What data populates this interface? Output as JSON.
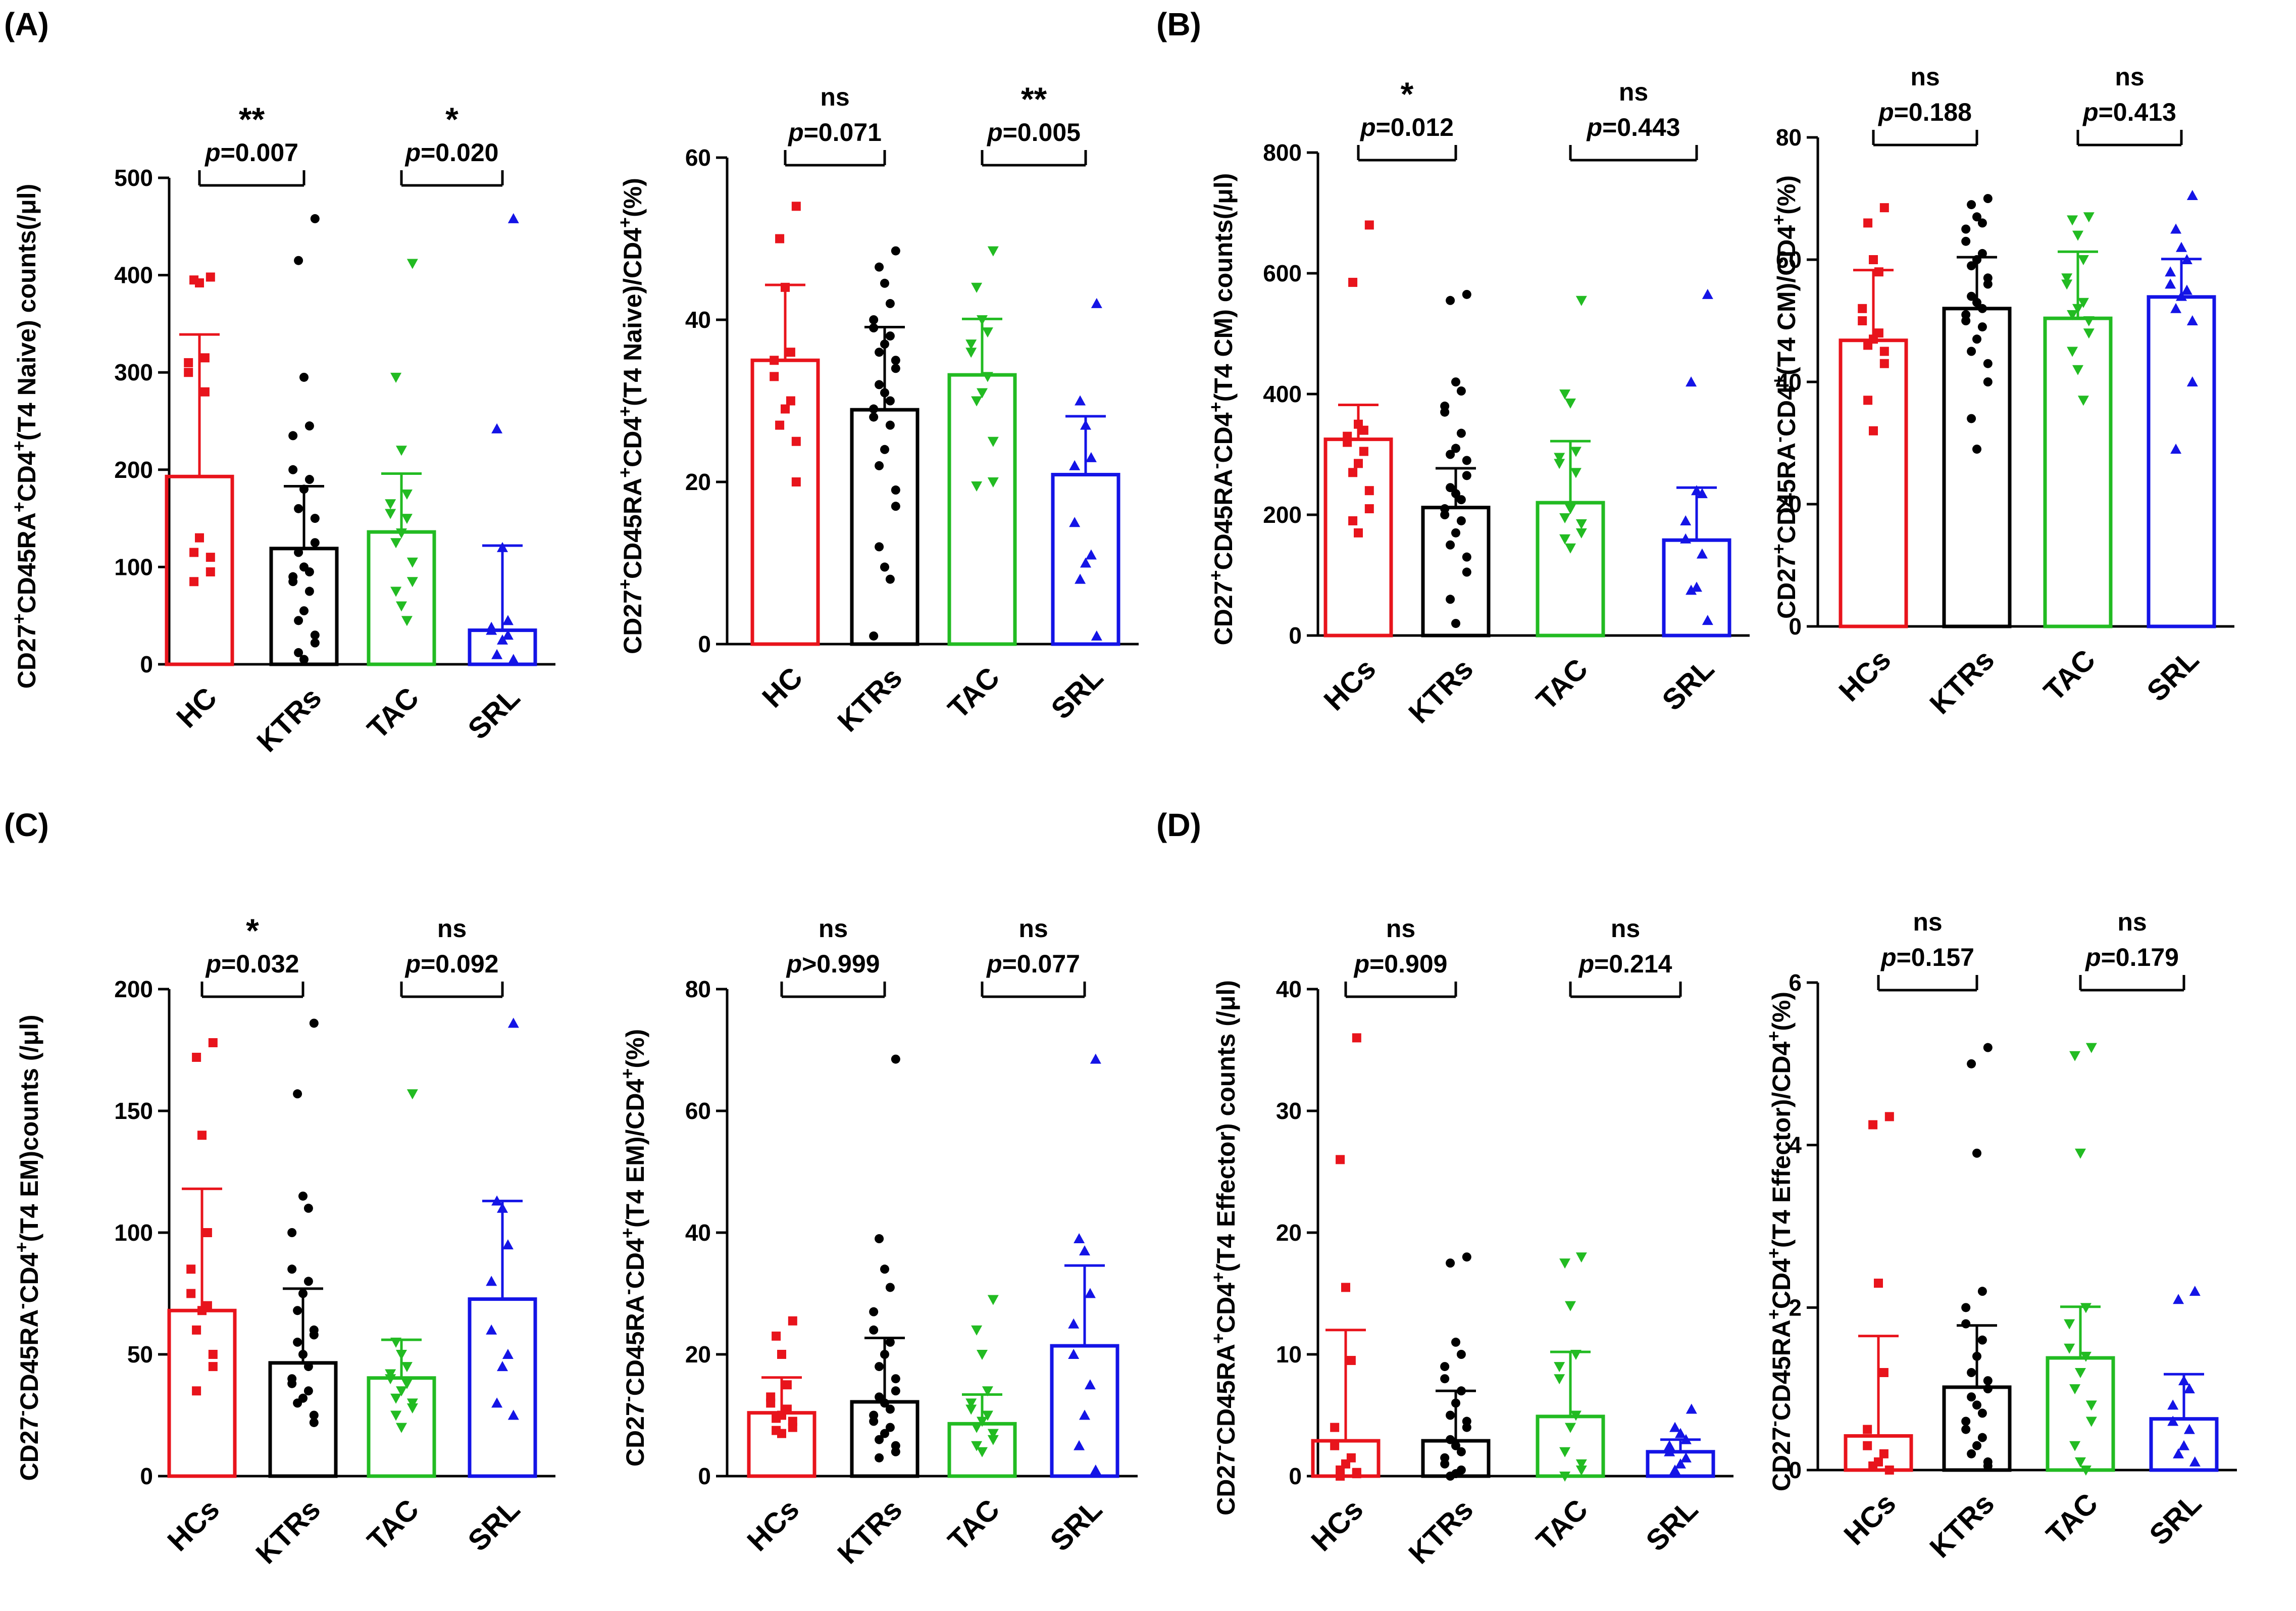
{
  "panel_labels": [
    "(A)",
    "(B)",
    "(C)",
    "(D)"
  ],
  "colors": {
    "HC": "#e8141c",
    "KTRs": "#000000",
    "TAC": "#22bb22",
    "SRL": "#1414e6"
  },
  "chart_data": [
    {
      "type": "bar",
      "panel": "(A)",
      "ylabel_parts": [
        [
          "CD27",
          "+",
          "sup"
        ],
        [
          "CD45RA",
          "+",
          "sup"
        ],
        [
          "CD4",
          "+",
          "sup"
        ],
        [
          "(T4 Naive) counts(/μl)",
          "",
          "sup"
        ]
      ],
      "ylim": [
        0,
        500
      ],
      "yticks": [
        0,
        100,
        200,
        300,
        400,
        500
      ],
      "categories": [
        "HC",
        "KTRs",
        "TAC",
        "SRL"
      ],
      "means": [
        193,
        119,
        136,
        35
      ],
      "err_upper": [
        339,
        183,
        196,
        122
      ],
      "points": [
        [
          398,
          395,
          392,
          315,
          310,
          300,
          280,
          130,
          115,
          110,
          95,
          85
        ],
        [
          458,
          415,
          295,
          245,
          235,
          200,
          190,
          180,
          160,
          150,
          125,
          115,
          100,
          95,
          90,
          85,
          75,
          55,
          45,
          30,
          22,
          12,
          5
        ],
        [
          412,
          295,
          220,
          175,
          165,
          155,
          150,
          135,
          125,
          105,
          85,
          75,
          60,
          45
        ],
        [
          458,
          242,
          120,
          45,
          38,
          35,
          30,
          25,
          10,
          5
        ]
      ],
      "comparisons": [
        {
          "groups": [
            0,
            1
          ],
          "star": "**",
          "p": "=0.007"
        },
        {
          "groups": [
            2,
            3
          ],
          "star": "*",
          "p": "=0.020"
        }
      ]
    },
    {
      "type": "bar",
      "panel": "(A)",
      "ylabel_parts": [
        [
          "CD27",
          "+",
          "sup"
        ],
        [
          "CD45RA",
          "+",
          "sup"
        ],
        [
          "CD4",
          "+",
          "sup"
        ],
        [
          "(T4 Naive)/CD4",
          "+",
          "sup"
        ],
        [
          "(%)",
          "",
          "sup"
        ]
      ],
      "ylim": [
        0,
        60
      ],
      "yticks": [
        0,
        20,
        40,
        60
      ],
      "categories": [
        "HC",
        "KTRs",
        "TAC",
        "SRL"
      ],
      "means": [
        35,
        28.9,
        33.2,
        20.9
      ],
      "err_upper": [
        44.3,
        39.1,
        40.1,
        28.1
      ],
      "points": [
        [
          54,
          50,
          44,
          36,
          35,
          33,
          30,
          29,
          27,
          25,
          20
        ],
        [
          48.5,
          46.5,
          44.5,
          42,
          40,
          39,
          38,
          37,
          36,
          35,
          34,
          32,
          31,
          30,
          29,
          28,
          27,
          24,
          22,
          19,
          17,
          12,
          9.5,
          8,
          1
        ],
        [
          48.5,
          44,
          40,
          38.5,
          37,
          36,
          33,
          31,
          30,
          25,
          20,
          19.5
        ],
        [
          42,
          30,
          27,
          23,
          22,
          15,
          11,
          10,
          8,
          1
        ]
      ],
      "comparisons": [
        {
          "groups": [
            0,
            1
          ],
          "star": "ns",
          "p": "=0.071"
        },
        {
          "groups": [
            2,
            3
          ],
          "star": "**",
          "p": "=0.005"
        }
      ]
    },
    {
      "type": "bar",
      "panel": "(B)",
      "ylabel_parts": [
        [
          "CD27",
          "+",
          "sup"
        ],
        [
          "CD45RA",
          "-",
          "sup"
        ],
        [
          "CD4",
          "+",
          "sup"
        ],
        [
          "(T4 CM) counts(/μl)",
          "",
          "sup"
        ]
      ],
      "ylim": [
        0,
        800
      ],
      "yticks": [
        0,
        200,
        400,
        600,
        800
      ],
      "categories": [
        "HCs",
        "KTRs",
        "TAC",
        "SRL"
      ],
      "means": [
        325,
        212,
        220,
        158
      ],
      "err_upper": [
        382,
        277,
        322,
        245
      ],
      "points": [
        [
          680,
          585,
          350,
          340,
          330,
          320,
          305,
          285,
          270,
          240,
          210,
          190,
          170
        ],
        [
          565,
          555,
          420,
          405,
          380,
          370,
          335,
          310,
          300,
          290,
          265,
          245,
          235,
          225,
          210,
          200,
          190,
          170,
          150,
          130,
          105,
          60,
          20
        ],
        [
          555,
          400,
          385,
          305,
          295,
          285,
          270,
          210,
          195,
          185,
          170,
          160,
          145
        ],
        [
          565,
          420,
          240,
          235,
          190,
          160,
          135,
          80,
          75,
          25
        ]
      ],
      "comparisons": [
        {
          "groups": [
            0,
            1
          ],
          "star": "*",
          "p": "=0.012"
        },
        {
          "groups": [
            2,
            3
          ],
          "star": "ns",
          "p": "=0.443"
        }
      ]
    },
    {
      "type": "bar",
      "panel": "(B)",
      "ylabel_parts": [
        [
          "CD27",
          "+",
          "sup"
        ],
        [
          "CD45RA",
          "-",
          "sup"
        ],
        [
          "CD4",
          "+",
          "sup"
        ],
        [
          "(T4 CM)/CD4",
          "+",
          "sup"
        ],
        [
          "(%)",
          "",
          "sup"
        ]
      ],
      "ylim": [
        0,
        80
      ],
      "yticks": [
        0,
        20,
        40,
        60,
        80
      ],
      "categories": [
        "HCs",
        "KTRs",
        "TAC",
        "SRL"
      ],
      "means": [
        46.8,
        52,
        50.4,
        53.9
      ],
      "err_upper": [
        58.3,
        60.4,
        61.3,
        60.1
      ],
      "points": [
        [
          68.5,
          66,
          60,
          58,
          52,
          50,
          48,
          47,
          46,
          45,
          43,
          37,
          32
        ],
        [
          70,
          69,
          67,
          66,
          65,
          63,
          61,
          60,
          59,
          57,
          56,
          54,
          53,
          52,
          51,
          50,
          49,
          47,
          45,
          43,
          40,
          34,
          29
        ],
        [
          67,
          66.5,
          64,
          60,
          57,
          56,
          53,
          52,
          51,
          50,
          48,
          45,
          42,
          37
        ],
        [
          70.5,
          65,
          62,
          60,
          58,
          56,
          55,
          54,
          52,
          50,
          40,
          29
        ]
      ],
      "comparisons": [
        {
          "groups": [
            0,
            1
          ],
          "star": "ns",
          "p": "=0.188"
        },
        {
          "groups": [
            2,
            3
          ],
          "star": "ns",
          "p": "=0.413"
        }
      ]
    },
    {
      "type": "bar",
      "panel": "(C)",
      "ylabel_parts": [
        [
          "CD27",
          "-",
          "sup"
        ],
        [
          "CD45RA",
          "-",
          "sup"
        ],
        [
          "CD4",
          "+",
          "sup"
        ],
        [
          "(T4 EM)counts (/μl)",
          "",
          "sup"
        ]
      ],
      "ylim": [
        0,
        200
      ],
      "yticks": [
        0,
        50,
        100,
        150,
        200
      ],
      "categories": [
        "HCs",
        "KTRs",
        "TAC",
        "SRL"
      ],
      "means": [
        68,
        46.5,
        40.3,
        72.7
      ],
      "err_upper": [
        118,
        77,
        56,
        113
      ],
      "points": [
        [
          178,
          172,
          140,
          100,
          85,
          75,
          70,
          68,
          60,
          50,
          45,
          35
        ],
        [
          186,
          157,
          115,
          110,
          100,
          85,
          80,
          75,
          68,
          60,
          58,
          55,
          50,
          45,
          40,
          38,
          35,
          32,
          30,
          25,
          22
        ],
        [
          157,
          55,
          50,
          45,
          42,
          40,
          38,
          35,
          32,
          30,
          28,
          25,
          20
        ],
        [
          186,
          113,
          110,
          95,
          80,
          60,
          50,
          45,
          30,
          25
        ]
      ],
      "comparisons": [
        {
          "groups": [
            0,
            1
          ],
          "star": "*",
          "p": "=0.032"
        },
        {
          "groups": [
            2,
            3
          ],
          "star": "ns",
          "p": "=0.092"
        }
      ]
    },
    {
      "type": "bar",
      "panel": "(C)",
      "ylabel_parts": [
        [
          "CD27",
          "-",
          "sup"
        ],
        [
          "CD45RA",
          "-",
          "sup"
        ],
        [
          "CD4",
          "+",
          "sup"
        ],
        [
          "(T4 EM)/CD4",
          "+",
          "sup"
        ],
        [
          "(%)",
          "",
          "sup"
        ]
      ],
      "ylim": [
        0,
        80
      ],
      "yticks": [
        0,
        20,
        40,
        60,
        80
      ],
      "categories": [
        "HCs",
        "KTRs",
        "TAC",
        "SRL"
      ],
      "means": [
        10.4,
        12.2,
        8.6,
        21.4
      ],
      "err_upper": [
        16.2,
        22.7,
        13.4,
        34.6
      ],
      "points": [
        [
          25.5,
          23,
          20,
          15,
          13,
          12,
          11,
          10,
          9.5,
          9,
          8,
          7.5,
          7
        ],
        [
          68.5,
          39,
          34,
          31,
          27,
          24,
          22,
          20,
          18,
          16,
          14,
          13,
          12,
          11,
          10,
          9,
          8,
          7,
          6,
          5,
          4,
          3
        ],
        [
          29,
          24,
          20,
          14,
          12,
          11,
          10,
          9,
          8,
          7,
          6,
          5,
          4
        ],
        [
          68.5,
          39,
          37,
          30,
          25,
          20,
          15,
          10,
          5,
          1
        ]
      ],
      "comparisons": [
        {
          "groups": [
            0,
            1
          ],
          "star": "ns",
          "p": ">0.999"
        },
        {
          "groups": [
            2,
            3
          ],
          "star": "ns",
          "p": "=0.077"
        }
      ]
    },
    {
      "type": "bar",
      "panel": "(D)",
      "ylabel_parts": [
        [
          "CD27",
          "-",
          "sup"
        ],
        [
          "CD45RA",
          "+",
          "sup"
        ],
        [
          "CD4",
          "+",
          "sup"
        ],
        [
          "(T4 Effector) counts (/μl)",
          "",
          "sup"
        ]
      ],
      "ylim": [
        0,
        40
      ],
      "yticks": [
        0,
        10,
        20,
        30,
        40
      ],
      "categories": [
        "HCs",
        "KTRs",
        "TAC",
        "SRL"
      ],
      "means": [
        2.9,
        2.9,
        4.9,
        2
      ],
      "err_upper": [
        12,
        7,
        10.2,
        3
      ],
      "points": [
        [
          36,
          26,
          15.5,
          9.5,
          4,
          2.5,
          1.5,
          1,
          0.5,
          0.3,
          0.2,
          0
        ],
        [
          18,
          17.5,
          11,
          10,
          9,
          8,
          7,
          6,
          5,
          4.5,
          4,
          3,
          2.5,
          2,
          1.5,
          1,
          0.5,
          0.2,
          0
        ],
        [
          18,
          17.5,
          14,
          10,
          9,
          8,
          5,
          4,
          2,
          1,
          0.5,
          0
        ],
        [
          5.5,
          4,
          3.5,
          3,
          2.5,
          2,
          1.5,
          1,
          0.5
        ]
      ],
      "comparisons": [
        {
          "groups": [
            0,
            1
          ],
          "star": "ns",
          "p": "=0.909"
        },
        {
          "groups": [
            2,
            3
          ],
          "star": "ns",
          "p": "=0.214"
        }
      ]
    },
    {
      "type": "bar",
      "panel": "(D)",
      "ylabel_parts": [
        [
          "CD27",
          "-",
          "sup"
        ],
        [
          "CD45RA",
          "+",
          "sup"
        ],
        [
          "CD4",
          "+",
          "sup"
        ],
        [
          "(T4 Effector)/CD4",
          "+",
          "sup"
        ],
        [
          "(%)",
          "",
          "sup"
        ]
      ],
      "ylim": [
        0,
        6
      ],
      "yticks": [
        0,
        2,
        4,
        6
      ],
      "categories": [
        "HCs",
        "KTRs",
        "TAC",
        "SRL"
      ],
      "means": [
        0.42,
        1.02,
        1.38,
        0.63
      ],
      "err_upper": [
        1.65,
        1.78,
        2.01,
        1.18
      ],
      "points": [
        [
          4.35,
          4.25,
          2.3,
          1.2,
          0.5,
          0.3,
          0.2,
          0.1,
          0.05,
          0
        ],
        [
          5.2,
          5,
          3.9,
          2.2,
          2,
          1.8,
          1.6,
          1.4,
          1.2,
          1.1,
          1,
          0.9,
          0.8,
          0.7,
          0.6,
          0.5,
          0.4,
          0.3,
          0.2,
          0.1,
          0.05
        ],
        [
          5.2,
          5.1,
          3.9,
          2,
          1.8,
          1.5,
          1.4,
          1.2,
          1,
          0.8,
          0.6,
          0.3,
          0.1,
          0
        ],
        [
          2.2,
          2.1,
          1.1,
          1,
          0.8,
          0.6,
          0.5,
          0.3,
          0.2,
          0.1
        ]
      ],
      "comparisons": [
        {
          "groups": [
            0,
            1
          ],
          "star": "ns",
          "p": "=0.157"
        },
        {
          "groups": [
            2,
            3
          ],
          "star": "ns",
          "p": "=0.179"
        }
      ]
    }
  ]
}
